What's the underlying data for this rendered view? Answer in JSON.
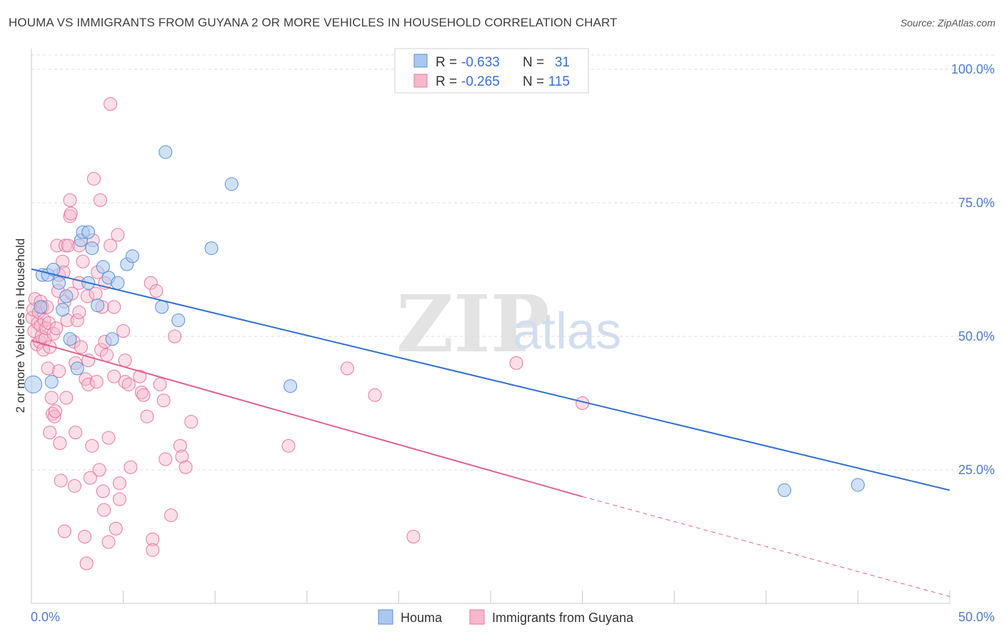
{
  "title": "HOUMA VS IMMIGRANTS FROM GUYANA 2 OR MORE VEHICLES IN HOUSEHOLD CORRELATION CHART",
  "source": "Source: ZipAtlas.com",
  "watermark": {
    "zip": "ZIP",
    "atlas": "atlas"
  },
  "colors": {
    "houma_fill": "#aac8ef",
    "houma_stroke": "#5a8fd8",
    "houma_line": "#2f6fd0",
    "guyana_fill": "#f6b8cb",
    "guyana_stroke": "#e8799e",
    "guyana_line": "#e0628f",
    "grid": "#dcdcdc",
    "tick_label": "#4f7cc8"
  },
  "legend": {
    "rows": [
      {
        "r_label": "R = ",
        "r_value": "-0.633",
        "n_label": "N = ",
        "n_value": "31"
      },
      {
        "r_label": "R = ",
        "r_value": "-0.265",
        "n_label": "N = ",
        "n_value": "115"
      }
    ]
  },
  "bottom_legend": {
    "houma": "Houma",
    "guyana": "Immigrants from Guyana"
  },
  "chart_data": {
    "type": "scatter",
    "xlabel": "",
    "ylabel": "2 or more Vehicles in Household",
    "xlim": [
      0,
      50
    ],
    "ylim": [
      0,
      105
    ],
    "x_tick_labels": [
      "0.0%",
      "50.0%"
    ],
    "y_ticks": [
      {
        "value": 25,
        "label": "25.0%"
      },
      {
        "value": 50,
        "label": "50.0%"
      },
      {
        "value": 75,
        "label": "75.0%"
      },
      {
        "value": 100,
        "label": "100.0%"
      }
    ],
    "grid": "horizontal dashed",
    "legend_placement": "top-center",
    "series": [
      {
        "name": "Houma",
        "r": -0.633,
        "n": 31,
        "trend": {
          "x0": 0,
          "y0": 62.6,
          "x1": 50,
          "y1": 21.2
        },
        "points": [
          [
            0.1,
            41.0
          ],
          [
            0.5,
            55.5
          ],
          [
            0.6,
            61.5
          ],
          [
            0.9,
            61.5
          ],
          [
            1.1,
            41.5
          ],
          [
            1.2,
            62.5
          ],
          [
            1.5,
            60.0
          ],
          [
            1.7,
            55.0
          ],
          [
            1.9,
            57.5
          ],
          [
            2.1,
            49.5
          ],
          [
            2.5,
            44.0
          ],
          [
            2.7,
            68.0
          ],
          [
            2.8,
            69.5
          ],
          [
            3.1,
            69.5
          ],
          [
            3.1,
            60.0
          ],
          [
            3.3,
            66.5
          ],
          [
            3.6,
            55.8
          ],
          [
            3.9,
            63.0
          ],
          [
            4.2,
            61.0
          ],
          [
            4.4,
            49.5
          ],
          [
            4.7,
            60.0
          ],
          [
            5.2,
            63.5
          ],
          [
            5.5,
            65.0
          ],
          [
            7.1,
            55.5
          ],
          [
            7.3,
            84.5
          ],
          [
            8.0,
            53.0
          ],
          [
            9.8,
            66.5
          ],
          [
            10.9,
            78.5
          ],
          [
            14.1,
            40.7
          ],
          [
            41.0,
            21.2
          ],
          [
            45.0,
            22.2
          ]
        ]
      },
      {
        "name": "Immigrants from Guyana",
        "r": -0.265,
        "n": 115,
        "trend_solid": {
          "x0": 0,
          "y0": 49.2,
          "x1": 30,
          "y1": 20.0
        },
        "trend_dashed": {
          "x0": 30,
          "y0": 20.0,
          "x1": 50,
          "y1": 1.3
        },
        "points": [
          [
            0.05,
            53.5
          ],
          [
            0.1,
            55.0
          ],
          [
            0.15,
            51.0
          ],
          [
            0.2,
            57.0
          ],
          [
            0.3,
            48.5
          ],
          [
            0.35,
            52.5
          ],
          [
            0.4,
            54.5
          ],
          [
            0.45,
            49.0
          ],
          [
            0.5,
            56.5
          ],
          [
            0.5,
            52.0
          ],
          [
            0.55,
            50.0
          ],
          [
            0.6,
            55.5
          ],
          [
            0.65,
            47.5
          ],
          [
            0.7,
            53.0
          ],
          [
            0.75,
            49.5
          ],
          [
            0.8,
            51.5
          ],
          [
            0.85,
            55.5
          ],
          [
            0.9,
            44.0
          ],
          [
            0.95,
            52.5
          ],
          [
            1.0,
            48.0
          ],
          [
            1.0,
            32.0
          ],
          [
            1.1,
            38.5
          ],
          [
            1.15,
            35.5
          ],
          [
            1.2,
            50.5
          ],
          [
            1.25,
            35.0
          ],
          [
            1.3,
            36.0
          ],
          [
            1.35,
            51.5
          ],
          [
            1.4,
            67.0
          ],
          [
            1.45,
            58.5
          ],
          [
            1.5,
            61.5
          ],
          [
            1.5,
            43.5
          ],
          [
            1.55,
            30.0
          ],
          [
            1.6,
            23.0
          ],
          [
            1.7,
            64.0
          ],
          [
            1.75,
            62.0
          ],
          [
            1.8,
            56.5
          ],
          [
            1.85,
            67.0
          ],
          [
            1.8,
            13.5
          ],
          [
            1.9,
            38.5
          ],
          [
            1.95,
            53.0
          ],
          [
            2.0,
            67.0
          ],
          [
            2.1,
            72.5
          ],
          [
            2.1,
            75.5
          ],
          [
            2.15,
            73.0
          ],
          [
            2.2,
            58.0
          ],
          [
            2.3,
            49.0
          ],
          [
            2.35,
            22.0
          ],
          [
            2.4,
            45.0
          ],
          [
            2.4,
            32.0
          ],
          [
            2.5,
            53.0
          ],
          [
            2.6,
            67.0
          ],
          [
            2.6,
            60.0
          ],
          [
            2.6,
            54.5
          ],
          [
            2.7,
            48.0
          ],
          [
            2.8,
            64.0
          ],
          [
            2.9,
            12.5
          ],
          [
            2.95,
            42.0
          ],
          [
            3.0,
            7.5
          ],
          [
            3.05,
            57.5
          ],
          [
            3.1,
            45.5
          ],
          [
            3.1,
            41.0
          ],
          [
            3.2,
            23.5
          ],
          [
            3.3,
            29.5
          ],
          [
            3.35,
            68.0
          ],
          [
            3.4,
            79.5
          ],
          [
            3.5,
            58.0
          ],
          [
            3.55,
            41.5
          ],
          [
            3.6,
            62.0
          ],
          [
            3.7,
            25.0
          ],
          [
            3.75,
            75.5
          ],
          [
            3.8,
            47.5
          ],
          [
            3.85,
            55.5
          ],
          [
            3.9,
            21.0
          ],
          [
            3.95,
            17.5
          ],
          [
            4.0,
            60.0
          ],
          [
            4.0,
            49.0
          ],
          [
            4.1,
            46.5
          ],
          [
            4.2,
            11.5
          ],
          [
            4.2,
            31.0
          ],
          [
            4.3,
            93.5
          ],
          [
            4.3,
            67.0
          ],
          [
            4.5,
            55.5
          ],
          [
            4.5,
            42.5
          ],
          [
            4.6,
            14.0
          ],
          [
            4.7,
            69.0
          ],
          [
            4.8,
            19.5
          ],
          [
            4.8,
            22.5
          ],
          [
            5.0,
            51.0
          ],
          [
            5.1,
            45.5
          ],
          [
            5.1,
            41.5
          ],
          [
            5.3,
            41.0
          ],
          [
            5.4,
            25.5
          ],
          [
            5.9,
            42.5
          ],
          [
            6.0,
            39.5
          ],
          [
            6.1,
            39.0
          ],
          [
            6.3,
            35.0
          ],
          [
            6.5,
            60.0
          ],
          [
            6.6,
            12.0
          ],
          [
            6.6,
            10.0
          ],
          [
            6.8,
            58.5
          ],
          [
            7.0,
            41.0
          ],
          [
            7.2,
            38.0
          ],
          [
            7.3,
            27.0
          ],
          [
            7.6,
            16.5
          ],
          [
            7.8,
            50.0
          ],
          [
            8.1,
            29.5
          ],
          [
            8.2,
            27.5
          ],
          [
            8.4,
            25.5
          ],
          [
            8.7,
            34.0
          ],
          [
            14.0,
            29.5
          ],
          [
            17.2,
            44.0
          ],
          [
            18.7,
            39.0
          ],
          [
            20.8,
            12.5
          ],
          [
            26.4,
            45.0
          ],
          [
            30.0,
            37.5
          ]
        ]
      }
    ]
  }
}
